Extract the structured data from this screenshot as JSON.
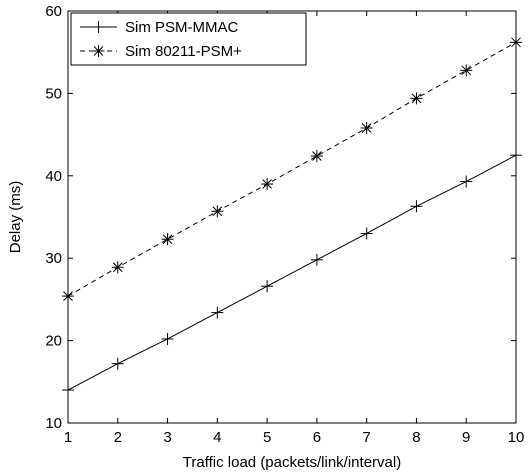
{
  "chart_data": {
    "type": "line",
    "title": "",
    "xlabel": "Traffic load (packets/link/interval)",
    "ylabel": "Delay (ms)",
    "xlim": [
      1,
      10
    ],
    "ylim": [
      10,
      60
    ],
    "x_ticks": [
      1,
      2,
      3,
      4,
      5,
      6,
      7,
      8,
      9,
      10
    ],
    "y_ticks": [
      10,
      20,
      30,
      40,
      50,
      60
    ],
    "grid": false,
    "legend_position": "top-left",
    "x": [
      1,
      2,
      3,
      4,
      5,
      6,
      7,
      8,
      9,
      10
    ],
    "series": [
      {
        "name": "Sim PSM-MMAC",
        "values": [
          14.0,
          17.2,
          20.2,
          23.4,
          26.6,
          29.8,
          33.0,
          36.3,
          39.3,
          42.5
        ],
        "line_style": "solid",
        "marker": "plus",
        "color": "#000000"
      },
      {
        "name": "Sim 80211-PSM+",
        "values": [
          25.4,
          28.9,
          32.3,
          35.7,
          39.0,
          42.4,
          45.8,
          49.4,
          52.8,
          56.2
        ],
        "line_style": "dashed",
        "marker": "asterisk",
        "color": "#000000"
      }
    ]
  }
}
